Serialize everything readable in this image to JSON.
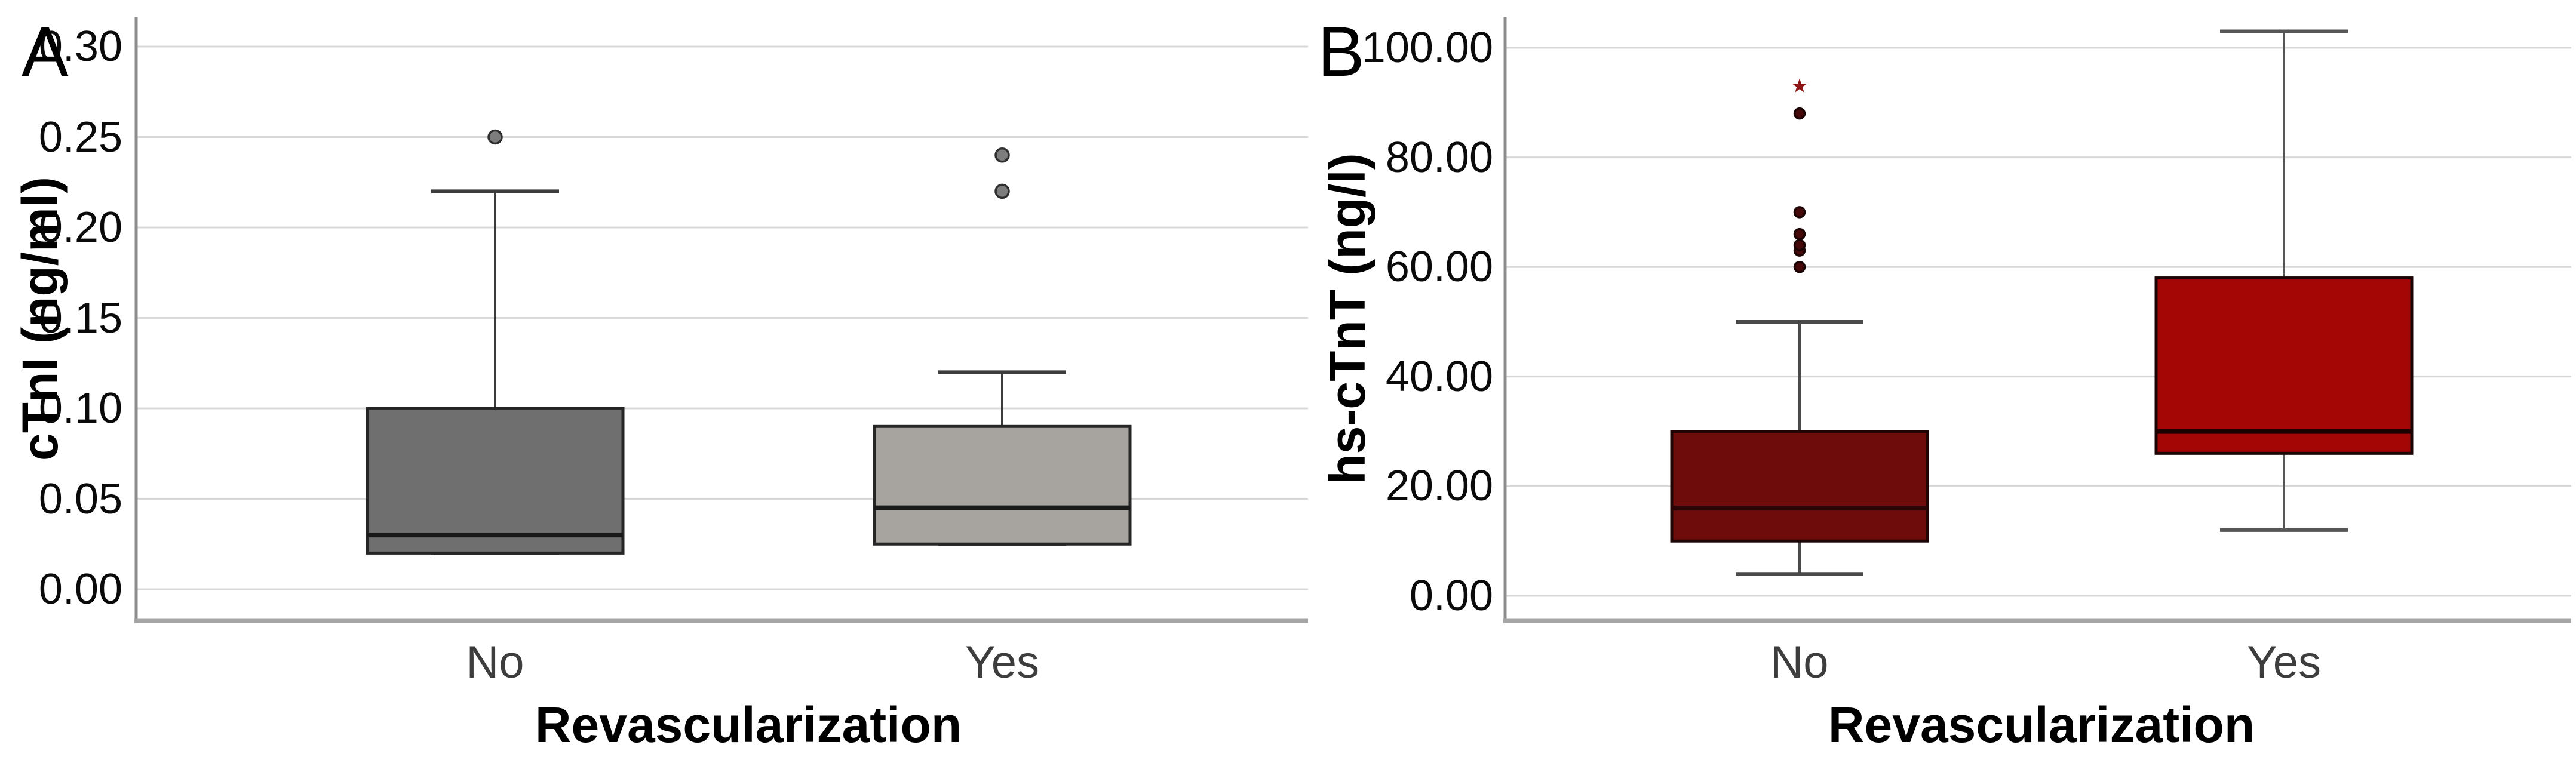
{
  "chart_data": [
    {
      "type": "box",
      "panel_label": "A",
      "y_axis": {
        "title": "cTnI (ng/ml)",
        "min": 0.0,
        "max": 0.3,
        "step": 0.05,
        "ticks": [
          {
            "label": "0.00",
            "value": 0.0
          },
          {
            "label": "0.05",
            "value": 0.05
          },
          {
            "label": "0.10",
            "value": 0.1
          },
          {
            "label": "0.15",
            "value": 0.15
          },
          {
            "label": "0.20",
            "value": 0.2
          },
          {
            "label": "0.25",
            "value": 0.25
          },
          {
            "label": "0.30",
            "value": 0.3
          }
        ]
      },
      "x_axis": {
        "title": "Revascularization",
        "categories": [
          "No",
          "Yes"
        ]
      },
      "grid": true,
      "legend": "none",
      "boxes": [
        {
          "category": "No",
          "whisker_low": 0.02,
          "q1": 0.02,
          "median": 0.03,
          "q3": 0.1,
          "whisker_high": 0.22,
          "outliers": [
            0.25
          ],
          "extremes": [],
          "fill": "#6f6f6f",
          "border": "#262626",
          "median_color": "#1a1a1a",
          "whisker_color": "#3c3c3c"
        },
        {
          "category": "Yes",
          "whisker_low": 0.025,
          "q1": 0.025,
          "median": 0.045,
          "q3": 0.09,
          "whisker_high": 0.12,
          "outliers": [
            0.22,
            0.24
          ],
          "extremes": [],
          "fill": "#a7a39e",
          "border": "#262626",
          "median_color": "#1a1a1a",
          "whisker_color": "#3c3c3c"
        }
      ],
      "outlier_marker": {
        "fill": "#7d7d7d",
        "stroke": "#2f2f2f"
      },
      "extreme_marker": {
        "color": "#8c1414"
      }
    },
    {
      "type": "box",
      "panel_label": "B",
      "y_axis": {
        "title": "hs-cTnT (ng/l)",
        "min": 0.0,
        "max": 100.0,
        "step": 20.0,
        "ticks": [
          {
            "label": "0.00",
            "value": 0
          },
          {
            "label": "20.00",
            "value": 20
          },
          {
            "label": "40.00",
            "value": 40
          },
          {
            "label": "60.00",
            "value": 60
          },
          {
            "label": "80.00",
            "value": 80
          },
          {
            "label": "100.00",
            "value": 100
          }
        ]
      },
      "x_axis": {
        "title": "Revascularization",
        "categories": [
          "No",
          "Yes"
        ]
      },
      "grid": true,
      "legend": "none",
      "boxes": [
        {
          "category": "No",
          "whisker_low": 4,
          "q1": 10,
          "median": 16,
          "q3": 30,
          "whisker_high": 50,
          "outliers": [
            60,
            63,
            64,
            66,
            70,
            88
          ],
          "extremes": [
            93
          ],
          "fill": "#6e0c0c",
          "border": "#1e0505",
          "median_color": "#2b0505",
          "whisker_color": "#4a4a4a"
        },
        {
          "category": "Yes",
          "whisker_low": 12,
          "q1": 26,
          "median": 30,
          "q3": 58,
          "whisker_high": 103,
          "outliers": [],
          "extremes": [],
          "fill": "#a40505",
          "border": "#1e0505",
          "median_color": "#1e0202",
          "whisker_color": "#565656"
        }
      ],
      "outlier_marker": {
        "fill": "#460909",
        "stroke": "#1c0303"
      },
      "extreme_marker": {
        "color": "#8c1414"
      }
    }
  ],
  "styles": {
    "background": "#ffffff",
    "gridline": "#d8d8d8",
    "y_axis_line": "#8c8c8c",
    "x_axis_line": "#a6a6a6",
    "tick_label_color": "#0a0a0a",
    "category_label_color": "#3d3d3d"
  }
}
